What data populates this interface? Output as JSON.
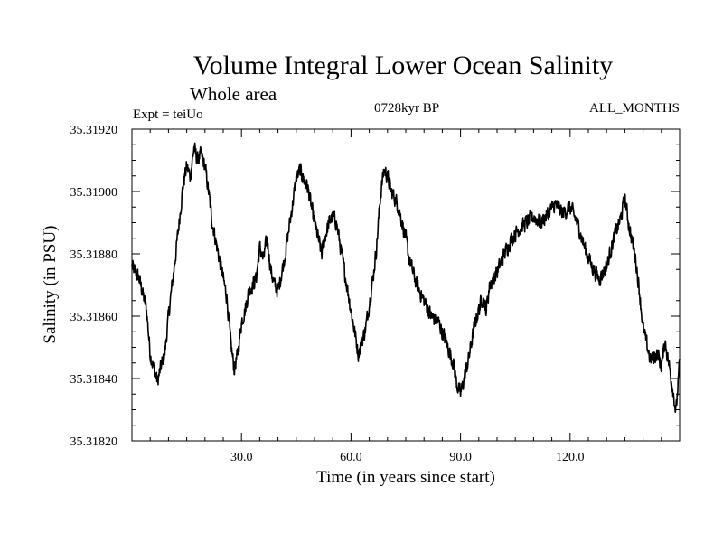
{
  "chart_data": {
    "type": "line",
    "title": "Volume Integral Lower Ocean Salinity",
    "subtitle": "Whole area",
    "expt_label": "Expt = teiUo",
    "period_label": "0728kyr BP",
    "months_label": "ALL_MONTHS",
    "xlabel": "Time (in years since start)",
    "ylabel": "Salinity (in PSU)",
    "xlim": [
      0,
      150
    ],
    "ylim": [
      35.3182,
      35.3192
    ],
    "xticks": [
      30,
      60,
      90,
      120
    ],
    "xtick_labels": [
      "30.0",
      "60.0",
      "90.0",
      "120.0"
    ],
    "yticks": [
      35.3182,
      35.3184,
      35.3186,
      35.3188,
      35.319,
      35.3192
    ],
    "ytick_labels": [
      "35.31820",
      "35.31840",
      "35.31860",
      "35.31880",
      "35.31900",
      "35.31920"
    ],
    "series": [
      {
        "name": "Salinity",
        "x": [
          0,
          2,
          4,
          5,
          6,
          7,
          8,
          9,
          10,
          12,
          14,
          15,
          16,
          17,
          18,
          19,
          20,
          21,
          22,
          24,
          26,
          27,
          28,
          29,
          30,
          31,
          32,
          34,
          35,
          36,
          37,
          38,
          39,
          40,
          42,
          44,
          45,
          46,
          47,
          48,
          50,
          52,
          53,
          54,
          55,
          56,
          58,
          60,
          62,
          64,
          66,
          67,
          68,
          69,
          70,
          71,
          72,
          73,
          74,
          75,
          76,
          78,
          80,
          82,
          84,
          86,
          88,
          89,
          90,
          91,
          92,
          94,
          96,
          97,
          98,
          100,
          102,
          104,
          106,
          108,
          110,
          112,
          114,
          116,
          118,
          120,
          122,
          124,
          126,
          128,
          130,
          132,
          134,
          135,
          136,
          138,
          139,
          140,
          142,
          144,
          145,
          146,
          148,
          149,
          150
        ],
        "values": [
          35.31876,
          35.31872,
          35.31862,
          35.31848,
          35.31843,
          35.31839,
          35.31844,
          35.31848,
          35.3186,
          35.3188,
          35.31902,
          35.31908,
          35.31905,
          35.31914,
          35.3191,
          35.31912,
          35.31908,
          35.319,
          35.3189,
          35.31878,
          35.31866,
          35.31852,
          35.31843,
          35.31848,
          35.31858,
          35.31862,
          35.31868,
          35.31872,
          35.31882,
          35.31878,
          35.31885,
          35.31875,
          35.3187,
          35.31868,
          35.3188,
          35.31896,
          35.31904,
          35.31907,
          35.31904,
          35.31902,
          35.3189,
          35.3188,
          35.31886,
          35.3189,
          35.31892,
          35.3189,
          35.31876,
          35.31862,
          35.31848,
          35.31856,
          35.31872,
          35.31882,
          35.31898,
          35.31907,
          35.31905,
          35.319,
          35.31898,
          35.31895,
          35.3189,
          35.31885,
          35.31878,
          35.3187,
          35.31865,
          35.3186,
          35.31858,
          35.31852,
          35.31845,
          35.31838,
          35.31835,
          35.3184,
          35.31845,
          35.31858,
          35.31866,
          35.31862,
          35.3187,
          35.31874,
          35.3188,
          35.31885,
          35.31888,
          35.3189,
          35.31892,
          35.3189,
          35.31893,
          35.31896,
          35.31893,
          35.31895,
          35.3189,
          35.31882,
          35.31876,
          35.31872,
          35.31876,
          35.31885,
          35.31892,
          35.31898,
          35.3189,
          35.31878,
          35.31868,
          35.31856,
          35.31846,
          35.31848,
          35.31844,
          35.31852,
          35.31838,
          35.31829,
          35.31845
        ]
      }
    ]
  }
}
